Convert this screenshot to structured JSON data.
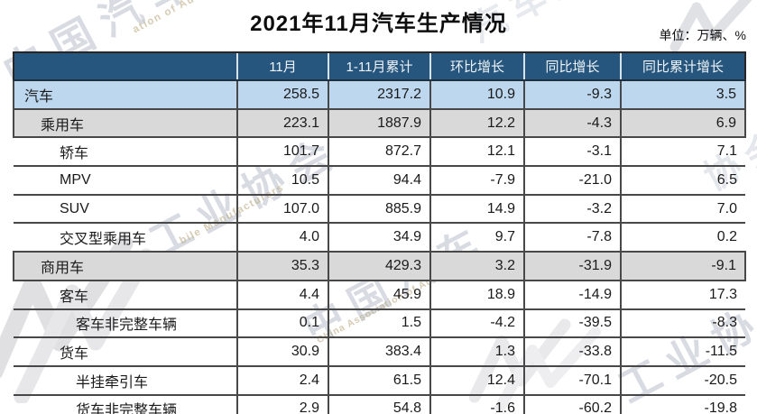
{
  "title": "2021年11月汽车生产情况",
  "unit_label": "单位：万辆、%",
  "table": {
    "columns": [
      "",
      "11月",
      "1-11月累计",
      "环比增长",
      "同比增长",
      "同比累计增长"
    ],
    "rows": [
      {
        "label": "汽车",
        "indent": 0,
        "style": "blue",
        "values": [
          "258.5",
          "2317.2",
          "10.9",
          "-9.3",
          "3.5"
        ]
      },
      {
        "label": "乘用车",
        "indent": 1,
        "style": "gray",
        "values": [
          "223.1",
          "1887.9",
          "12.2",
          "-4.3",
          "6.9"
        ]
      },
      {
        "label": "轿车",
        "indent": 2,
        "style": "white",
        "values": [
          "101.7",
          "872.7",
          "12.1",
          "-3.1",
          "7.1"
        ]
      },
      {
        "label": "MPV",
        "indent": 2,
        "style": "white",
        "values": [
          "10.5",
          "94.4",
          "-7.9",
          "-21.0",
          "6.5"
        ]
      },
      {
        "label": "SUV",
        "indent": 2,
        "style": "white",
        "values": [
          "107.0",
          "885.9",
          "14.9",
          "-3.2",
          "7.0"
        ]
      },
      {
        "label": "交叉型乘用车",
        "indent": 2,
        "style": "white",
        "values": [
          "4.0",
          "34.9",
          "9.7",
          "-7.8",
          "0.2"
        ]
      },
      {
        "label": "商用车",
        "indent": 1,
        "style": "gray",
        "values": [
          "35.3",
          "429.3",
          "3.2",
          "-31.9",
          "-9.1"
        ]
      },
      {
        "label": "客车",
        "indent": 2,
        "style": "white",
        "values": [
          "4.4",
          "45.9",
          "18.9",
          "-14.9",
          "17.3"
        ]
      },
      {
        "label": "客车非完整车辆",
        "indent": 3,
        "style": "white",
        "values": [
          "0.1",
          "1.5",
          "-4.2",
          "-39.5",
          "-8.3"
        ]
      },
      {
        "label": "货车",
        "indent": 2,
        "style": "white",
        "values": [
          "30.9",
          "383.4",
          "1.3",
          "-33.8",
          "-11.5"
        ]
      },
      {
        "label": "半挂牵引车",
        "indent": 3,
        "style": "white",
        "values": [
          "2.4",
          "61.5",
          "12.4",
          "-70.1",
          "-20.5"
        ]
      },
      {
        "label": "货车非完整车辆",
        "indent": 3,
        "style": "white",
        "values": [
          "2.9",
          "54.8",
          "-1.6",
          "-60.2",
          "-19.8"
        ]
      }
    ]
  },
  "chart_data": {
    "type": "table",
    "title": "2021年11月汽车生产情况",
    "unit": "万辆、%",
    "columns": [
      "",
      "11月",
      "1-11月累计",
      "环比增长",
      "同比增长",
      "同比累计增长"
    ],
    "rows": [
      [
        "汽车",
        258.5,
        2317.2,
        10.9,
        -9.3,
        3.5
      ],
      [
        "乘用车",
        223.1,
        1887.9,
        12.2,
        -4.3,
        6.9
      ],
      [
        "轿车",
        101.7,
        872.7,
        12.1,
        -3.1,
        7.1
      ],
      [
        "MPV",
        10.5,
        94.4,
        -7.9,
        -21.0,
        6.5
      ],
      [
        "SUV",
        107.0,
        885.9,
        14.9,
        -3.2,
        7.0
      ],
      [
        "交叉型乘用车",
        4.0,
        34.9,
        9.7,
        -7.8,
        0.2
      ],
      [
        "商用车",
        35.3,
        429.3,
        3.2,
        -31.9,
        -9.1
      ],
      [
        "客车",
        4.4,
        45.9,
        18.9,
        -14.9,
        17.3
      ],
      [
        "客车非完整车辆",
        0.1,
        1.5,
        -4.2,
        -39.5,
        -8.3
      ],
      [
        "货车",
        30.9,
        383.4,
        1.3,
        -33.8,
        -11.5
      ],
      [
        "半挂牵引车",
        2.4,
        61.5,
        12.4,
        -70.1,
        -20.5
      ],
      [
        "货车非完整车辆",
        2.9,
        54.8,
        -1.6,
        -60.2,
        -19.8
      ]
    ]
  },
  "colors": {
    "header_bg": "#26567D",
    "row_blue": "#BDD7EE",
    "row_gray": "#D9D9D9",
    "border": "#484848"
  },
  "watermarks": {
    "cn_top_left": "中国汽车",
    "en_top_left": "ation of Automobile",
    "cn_mid_left": "工业协会",
    "en_mid_left": "bile Manufacturers",
    "cn_top_center": "汽车工业",
    "cn_bottom_center": "中国汽车",
    "en_bottom_center": "China Association of Automobile",
    "cn_right_bottom": "工业协会",
    "cn_right_upper": "协会"
  }
}
